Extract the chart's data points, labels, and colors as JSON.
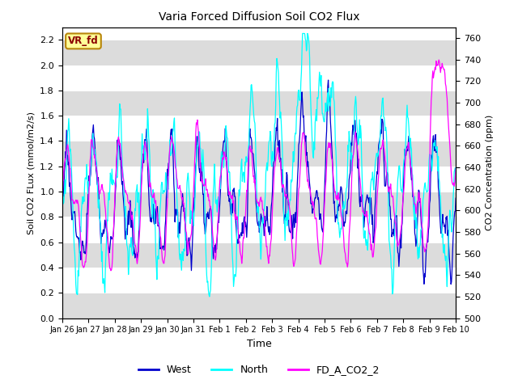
{
  "title": "Varia Forced Diffusion Soil CO2 Flux",
  "xlabel": "Time",
  "ylabel_left": "Soil CO2 FLux (mmol/m2/s)",
  "ylabel_right": "CO2 Concentration (ppm)",
  "ylim_left": [
    0.0,
    2.3
  ],
  "ylim_right": [
    500,
    770
  ],
  "yticks_left": [
    0.0,
    0.2,
    0.4,
    0.6,
    0.8,
    1.0,
    1.2,
    1.4,
    1.6,
    1.8,
    2.0,
    2.2
  ],
  "yticks_right": [
    500,
    520,
    540,
    560,
    580,
    600,
    620,
    640,
    660,
    680,
    700,
    720,
    740,
    760
  ],
  "xtick_labels": [
    "Jan 26",
    "Jan 27",
    "Jan 28",
    "Jan 29",
    "Jan 30",
    "Jan 31",
    "Feb 1",
    "Feb 2",
    "Feb 3",
    "Feb 4",
    "Feb 5",
    "Feb 6",
    "Feb 7",
    "Feb 8",
    "Feb 9",
    "Feb 10"
  ],
  "color_west": "#0000CD",
  "color_north": "#00FFFF",
  "color_fd": "#FF00FF",
  "annotation_text": "VR_fd",
  "annotation_color": "#8B0000",
  "annotation_bg": "#FFFF99",
  "bg_band_color": "#DCDCDC",
  "legend_labels": [
    "West",
    "North",
    "FD_A_CO2_2"
  ],
  "n_days": 15,
  "n_pts": 720
}
